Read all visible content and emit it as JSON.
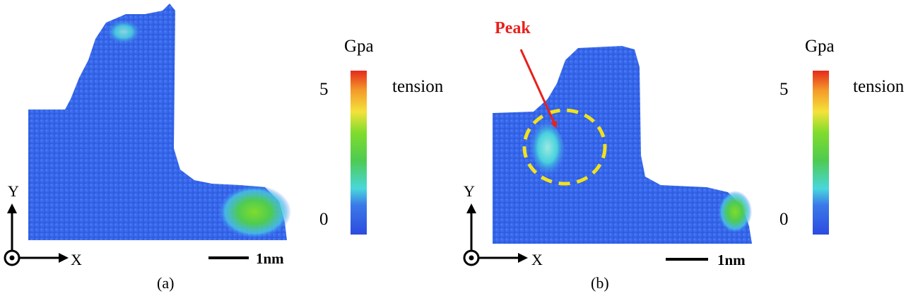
{
  "panels": [
    {
      "caption": "(a)",
      "axes": {
        "y_label": "Y",
        "x_label": "X"
      },
      "scale_bar": "1nm",
      "colorbar": {
        "unit": "Gpa",
        "tick_max": "5",
        "tick_min": "0",
        "label": "tension"
      }
    },
    {
      "caption": "(b)",
      "axes": {
        "y_label": "Y",
        "x_label": "X"
      },
      "scale_bar": "1nm",
      "annotation": "Peak",
      "colorbar": {
        "unit": "Gpa",
        "tick_max": "5",
        "tick_min": "0",
        "label": "tension"
      }
    }
  ],
  "colors": {
    "atom_base": "#2f5ee0",
    "annotation": "#e8201c",
    "highlight_circle": "#f2e21c",
    "colorbar_stops": [
      "#2d4be0",
      "#3aa8ee",
      "#49d7dd",
      "#4ecb52",
      "#7fdc2c",
      "#f4e23a",
      "#f49a2a",
      "#e52a1c"
    ]
  }
}
